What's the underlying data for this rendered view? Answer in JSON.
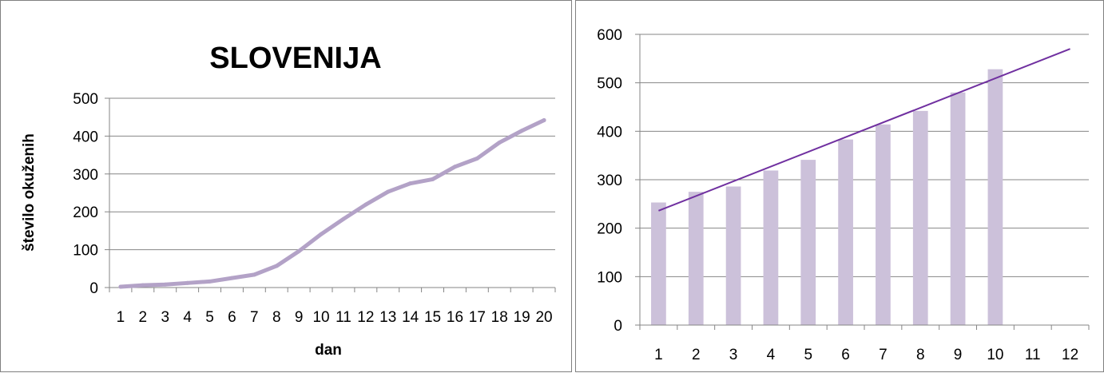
{
  "chart_data": [
    {
      "type": "line",
      "title": "SLOVENIJA",
      "xlabel": "dan",
      "ylabel": "število okuženih",
      "categories": [
        "1",
        "2",
        "3",
        "4",
        "5",
        "6",
        "7",
        "8",
        "9",
        "10",
        "11",
        "12",
        "13",
        "14",
        "15",
        "16",
        "17",
        "18",
        "19",
        "20"
      ],
      "series": [
        {
          "values": [
            2,
            6,
            8,
            12,
            16,
            25,
            34,
            57,
            96,
            141,
            181,
            219,
            253,
            275,
            286,
            319,
            341,
            383,
            414,
            442
          ]
        }
      ],
      "ylim": [
        0,
        500
      ],
      "yticks": [
        0,
        100,
        200,
        300,
        400,
        500
      ],
      "grid": true,
      "color": "#b3a2c7"
    },
    {
      "type": "bar",
      "categories": [
        "1",
        "2",
        "3",
        "4",
        "5",
        "6",
        "7",
        "8",
        "9",
        "10",
        "11",
        "12"
      ],
      "series": [
        {
          "values": [
            253,
            275,
            286,
            319,
            341,
            383,
            414,
            442,
            480,
            528,
            null,
            null
          ]
        }
      ],
      "trendline": {
        "type": "linear",
        "start": {
          "x": 1,
          "y": 236
        },
        "end": {
          "x": 12,
          "y": 570
        }
      },
      "ylim": [
        0,
        600
      ],
      "yticks": [
        0,
        100,
        200,
        300,
        400,
        500,
        600
      ],
      "grid": true,
      "bar_color": "#ccc1da",
      "line_color": "#7030a0"
    }
  ]
}
